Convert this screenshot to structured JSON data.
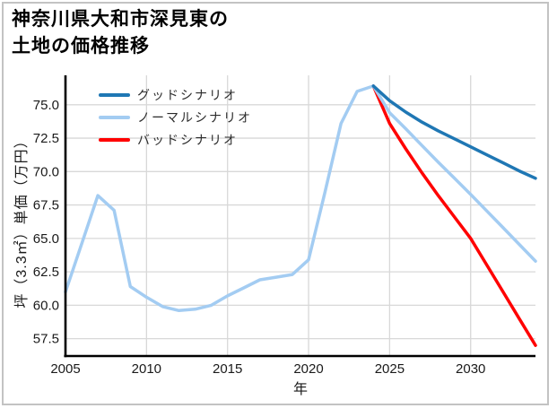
{
  "header": {
    "title_line1": "神奈川県大和市深見東の",
    "title_line2": "土地の価格推移"
  },
  "chart_data": {
    "type": "line",
    "title": "神奈川県大和市深見東の土地の価格推移",
    "xlabel": "年",
    "ylabel": "坪（3.3㎡）単価（万円）",
    "xlim": [
      2005,
      2034
    ],
    "ylim": [
      56.2,
      77.2
    ],
    "xticks": [
      2005,
      2010,
      2015,
      2020,
      2025,
      2030
    ],
    "yticks": [
      57.5,
      60.0,
      62.5,
      65.0,
      67.5,
      70.0,
      72.5,
      75.0
    ],
    "grid": true,
    "legend_position": "upper-left",
    "series": [
      {
        "name": "グッドシナリオ",
        "color": "#1f77b4",
        "x": [
          2024,
          2025,
          2026,
          2027,
          2028,
          2029,
          2030,
          2031,
          2032,
          2033,
          2034
        ],
        "values": [
          76.4,
          75.3,
          74.45,
          73.7,
          73.05,
          72.45,
          71.85,
          71.25,
          70.65,
          70.05,
          69.5
        ]
      },
      {
        "name": "ノーマルシナリオ",
        "color": "#a3ccf2",
        "x": [
          2005,
          2006,
          2007,
          2008,
          2009,
          2010,
          2011,
          2012,
          2013,
          2014,
          2015,
          2016,
          2017,
          2018,
          2019,
          2020,
          2021,
          2022,
          2023,
          2024,
          2025,
          2026,
          2027,
          2028,
          2029,
          2030,
          2031,
          2032,
          2033,
          2034
        ],
        "values": [
          61.0,
          64.6,
          68.2,
          67.1,
          61.4,
          60.6,
          59.9,
          59.6,
          59.7,
          60.0,
          60.7,
          61.3,
          61.9,
          62.1,
          62.3,
          63.4,
          68.4,
          73.6,
          76.0,
          76.4,
          74.4,
          73.2,
          71.95,
          70.7,
          69.5,
          68.3,
          67.05,
          65.8,
          64.55,
          63.3
        ]
      },
      {
        "name": "バッドシナリオ",
        "color": "#ff0000",
        "x": [
          2024,
          2025,
          2026,
          2027,
          2028,
          2029,
          2030,
          2031,
          2032,
          2033,
          2034
        ],
        "values": [
          76.4,
          73.6,
          71.7,
          69.9,
          68.2,
          66.6,
          65.0,
          63.0,
          61.0,
          59.0,
          57.0
        ]
      }
    ],
    "colors": {
      "grid": "#d8d8d8",
      "axis": "#000000",
      "border": "#c3c3c3"
    }
  }
}
